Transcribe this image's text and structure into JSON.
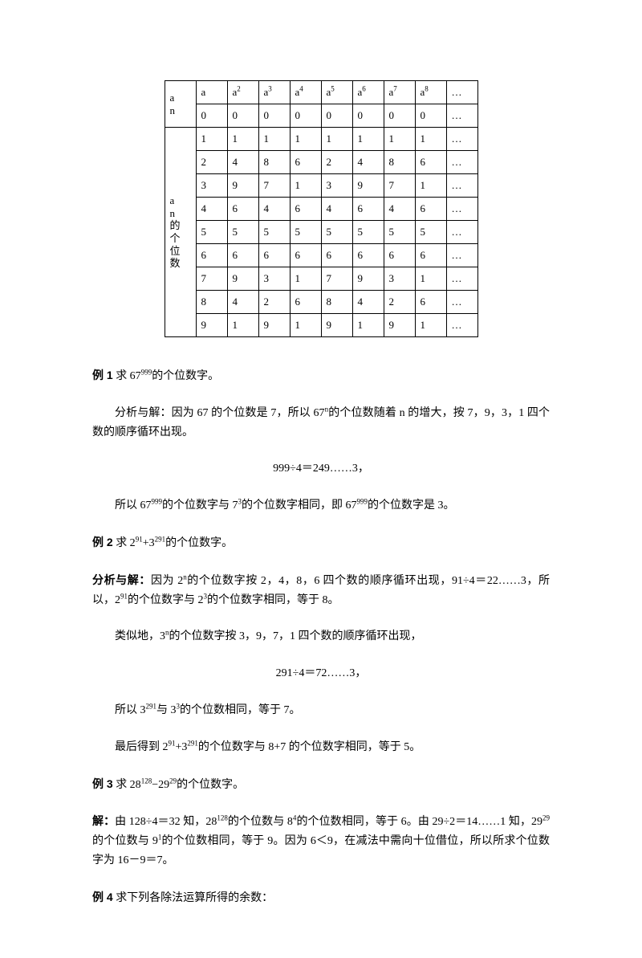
{
  "table": {
    "header_label": "a\nn",
    "side_label": "a\nn\n的\n个\n位\n数",
    "col_headers": [
      "a",
      "a2",
      "a3",
      "a4",
      "a5",
      "a6",
      "a7",
      "a8",
      "…"
    ],
    "col_supers": [
      "",
      "2",
      "3",
      "4",
      "5",
      "6",
      "7",
      "8",
      ""
    ],
    "rows": [
      [
        "0",
        "0",
        "0",
        "0",
        "0",
        "0",
        "0",
        "0",
        "…"
      ],
      [
        "1",
        "1",
        "1",
        "1",
        "1",
        "1",
        "1",
        "1",
        "…"
      ],
      [
        "2",
        "4",
        "8",
        "6",
        "2",
        "4",
        "8",
        "6",
        "…"
      ],
      [
        "3",
        "9",
        "7",
        "1",
        "3",
        "9",
        "7",
        "1",
        "…"
      ],
      [
        "4",
        "6",
        "4",
        "6",
        "4",
        "6",
        "4",
        "6",
        "…"
      ],
      [
        "5",
        "5",
        "5",
        "5",
        "5",
        "5",
        "5",
        "5",
        "…"
      ],
      [
        "6",
        "6",
        "6",
        "6",
        "6",
        "6",
        "6",
        "6",
        "…"
      ],
      [
        "7",
        "9",
        "3",
        "1",
        "7",
        "9",
        "3",
        "1",
        "…"
      ],
      [
        "8",
        "4",
        "2",
        "6",
        "8",
        "4",
        "2",
        "6",
        "…"
      ],
      [
        "9",
        "1",
        "9",
        "1",
        "9",
        "1",
        "9",
        "1",
        "…"
      ]
    ]
  },
  "ex1": {
    "title_bold": "例 1",
    "title_rest_a": " 求 67",
    "title_sup": "999",
    "title_rest_b": "的个位数字。",
    "p1_a": "分析与解：因为 67 的个位数是 7，所以 67",
    "p1_sup": "n",
    "p1_b": "的个位数随着 n 的增大，按 7，9，3，1 四个数的顺序循环出现。",
    "eq": "999÷4＝249……3，",
    "p2_a": "所以 67",
    "p2_sup1": "999",
    "p2_b": "的个位数字与 7",
    "p2_sup2": "3",
    "p2_c": "的个位数字相同，即 67",
    "p2_sup3": "999",
    "p2_d": "的个位数字是 3。"
  },
  "ex2": {
    "title_bold": "例 2",
    "title_rest_a": " 求 2",
    "title_sup1": "91",
    "title_mid": "+3",
    "title_sup2": "291",
    "title_rest_b": "的个位数字。",
    "p1_bold": "分析与解：",
    "p1_a": "因为 2",
    "p1_sup1": "n",
    "p1_b": "的个位数字按 2，4，8，6 四个数的顺序循环出现，91÷4＝22……3，所以，2",
    "p1_sup2": "91",
    "p1_c": "的个位数字与 2",
    "p1_sup3": "3",
    "p1_d": "的个位数字相同，等于 8。",
    "p2_a": "类似地，3",
    "p2_sup": "n",
    "p2_b": "的个位数字按 3，9，7，1 四个数的顺序循环出现，",
    "eq": "291÷4＝72……3，",
    "p3_a": "所以 3",
    "p3_sup1": "291",
    "p3_b": "与 3",
    "p3_sup2": "3",
    "p3_c": "的个位数相同，等于 7。",
    "p4_a": "最后得到 2",
    "p4_sup1": "91",
    "p4_b": "+3",
    "p4_sup2": "291",
    "p4_c": "的个位数字与 8+7 的个位数字相同，等于 5。"
  },
  "ex3": {
    "title_bold": "例 3",
    "title_rest_a": " 求 28",
    "title_sup1": "128",
    "title_mid": "−29",
    "title_sup2": "29",
    "title_rest_b": "的个位数字。",
    "p1_bold": "解：",
    "p1_a": "由 128÷4＝32 知，28",
    "p1_sup1": "128",
    "p1_b": "的个位数与 8",
    "p1_sup2": "4",
    "p1_c": "的个位数相同，等于 6。由 29÷2＝14……1 知，29",
    "p1_sup3": "29",
    "p1_d": "的个位数与 9",
    "p1_sup4": "1",
    "p1_e": "的个位数相同，等于 9。因为 6＜9，在减法中需向十位借位，所以所求个位数字为 16－9＝7。"
  },
  "ex4": {
    "title_bold": "例 4",
    "title_rest": " 求下列各除法运算所得的余数："
  }
}
